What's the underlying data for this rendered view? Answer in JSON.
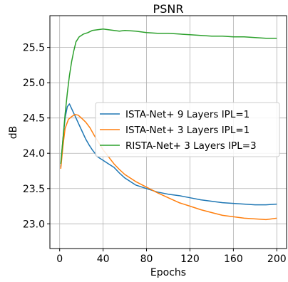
{
  "chart_data": {
    "type": "line",
    "title": "PSNR",
    "xlabel": "Epochs",
    "ylabel": "dB",
    "xlim": [
      -9,
      209
    ],
    "ylim": [
      22.65,
      25.95
    ],
    "xticks": [
      0,
      40,
      80,
      120,
      160,
      200
    ],
    "xtick_labels": [
      "0",
      "40",
      "80",
      "120",
      "160",
      "200"
    ],
    "yticks": [
      23.0,
      23.5,
      24.0,
      24.5,
      25.0,
      25.5
    ],
    "ytick_labels": [
      "23.0",
      "23.5",
      "24.0",
      "24.5",
      "25.0",
      "25.5"
    ],
    "grid": true,
    "legend_position": "center-right",
    "series": [
      {
        "name": "ISTA-Net+ 9 Layers IPL=1",
        "color": "#1f77b4",
        "points": [
          [
            1,
            23.8
          ],
          [
            3,
            24.2
          ],
          [
            5,
            24.5
          ],
          [
            7,
            24.66
          ],
          [
            9,
            24.7
          ],
          [
            12,
            24.6
          ],
          [
            15,
            24.5
          ],
          [
            18,
            24.4
          ],
          [
            21,
            24.3
          ],
          [
            24,
            24.2
          ],
          [
            27,
            24.12
          ],
          [
            30,
            24.05
          ],
          [
            35,
            23.95
          ],
          [
            40,
            23.9
          ],
          [
            45,
            23.85
          ],
          [
            50,
            23.8
          ],
          [
            55,
            23.72
          ],
          [
            60,
            23.65
          ],
          [
            70,
            23.55
          ],
          [
            80,
            23.5
          ],
          [
            90,
            23.45
          ],
          [
            100,
            23.42
          ],
          [
            110,
            23.4
          ],
          [
            120,
            23.37
          ],
          [
            130,
            23.34
          ],
          [
            140,
            23.32
          ],
          [
            150,
            23.3
          ],
          [
            160,
            23.29
          ],
          [
            170,
            23.28
          ],
          [
            180,
            23.27
          ],
          [
            190,
            23.27
          ],
          [
            200,
            23.28
          ]
        ]
      },
      {
        "name": "ISTA-Net+ 3 Layers IPL=1",
        "color": "#ff7f0e",
        "points": [
          [
            1,
            23.78
          ],
          [
            3,
            24.1
          ],
          [
            5,
            24.35
          ],
          [
            8,
            24.48
          ],
          [
            11,
            24.52
          ],
          [
            14,
            24.55
          ],
          [
            17,
            24.54
          ],
          [
            20,
            24.5
          ],
          [
            24,
            24.44
          ],
          [
            28,
            24.36
          ],
          [
            32,
            24.25
          ],
          [
            36,
            24.15
          ],
          [
            40,
            24.05
          ],
          [
            45,
            23.95
          ],
          [
            50,
            23.85
          ],
          [
            55,
            23.77
          ],
          [
            60,
            23.7
          ],
          [
            70,
            23.6
          ],
          [
            80,
            23.52
          ],
          [
            90,
            23.44
          ],
          [
            100,
            23.37
          ],
          [
            110,
            23.3
          ],
          [
            120,
            23.25
          ],
          [
            130,
            23.2
          ],
          [
            140,
            23.16
          ],
          [
            150,
            23.12
          ],
          [
            160,
            23.1
          ],
          [
            170,
            23.08
          ],
          [
            180,
            23.07
          ],
          [
            190,
            23.06
          ],
          [
            200,
            23.08
          ]
        ]
      },
      {
        "name": "RISTA-Net+ 3 Layers IPL=3",
        "color": "#2ca02c",
        "points": [
          [
            1,
            23.85
          ],
          [
            3,
            24.2
          ],
          [
            5,
            24.55
          ],
          [
            7,
            24.85
          ],
          [
            9,
            25.1
          ],
          [
            11,
            25.3
          ],
          [
            13,
            25.45
          ],
          [
            15,
            25.58
          ],
          [
            18,
            25.65
          ],
          [
            22,
            25.69
          ],
          [
            26,
            25.71
          ],
          [
            30,
            25.74
          ],
          [
            35,
            25.75
          ],
          [
            40,
            25.76
          ],
          [
            45,
            25.75
          ],
          [
            50,
            25.74
          ],
          [
            55,
            25.73
          ],
          [
            60,
            25.74
          ],
          [
            70,
            25.73
          ],
          [
            80,
            25.71
          ],
          [
            90,
            25.7
          ],
          [
            100,
            25.7
          ],
          [
            110,
            25.69
          ],
          [
            120,
            25.68
          ],
          [
            130,
            25.67
          ],
          [
            140,
            25.66
          ],
          [
            150,
            25.66
          ],
          [
            160,
            25.65
          ],
          [
            170,
            25.65
          ],
          [
            180,
            25.64
          ],
          [
            190,
            25.63
          ],
          [
            200,
            25.63
          ]
        ]
      }
    ]
  }
}
